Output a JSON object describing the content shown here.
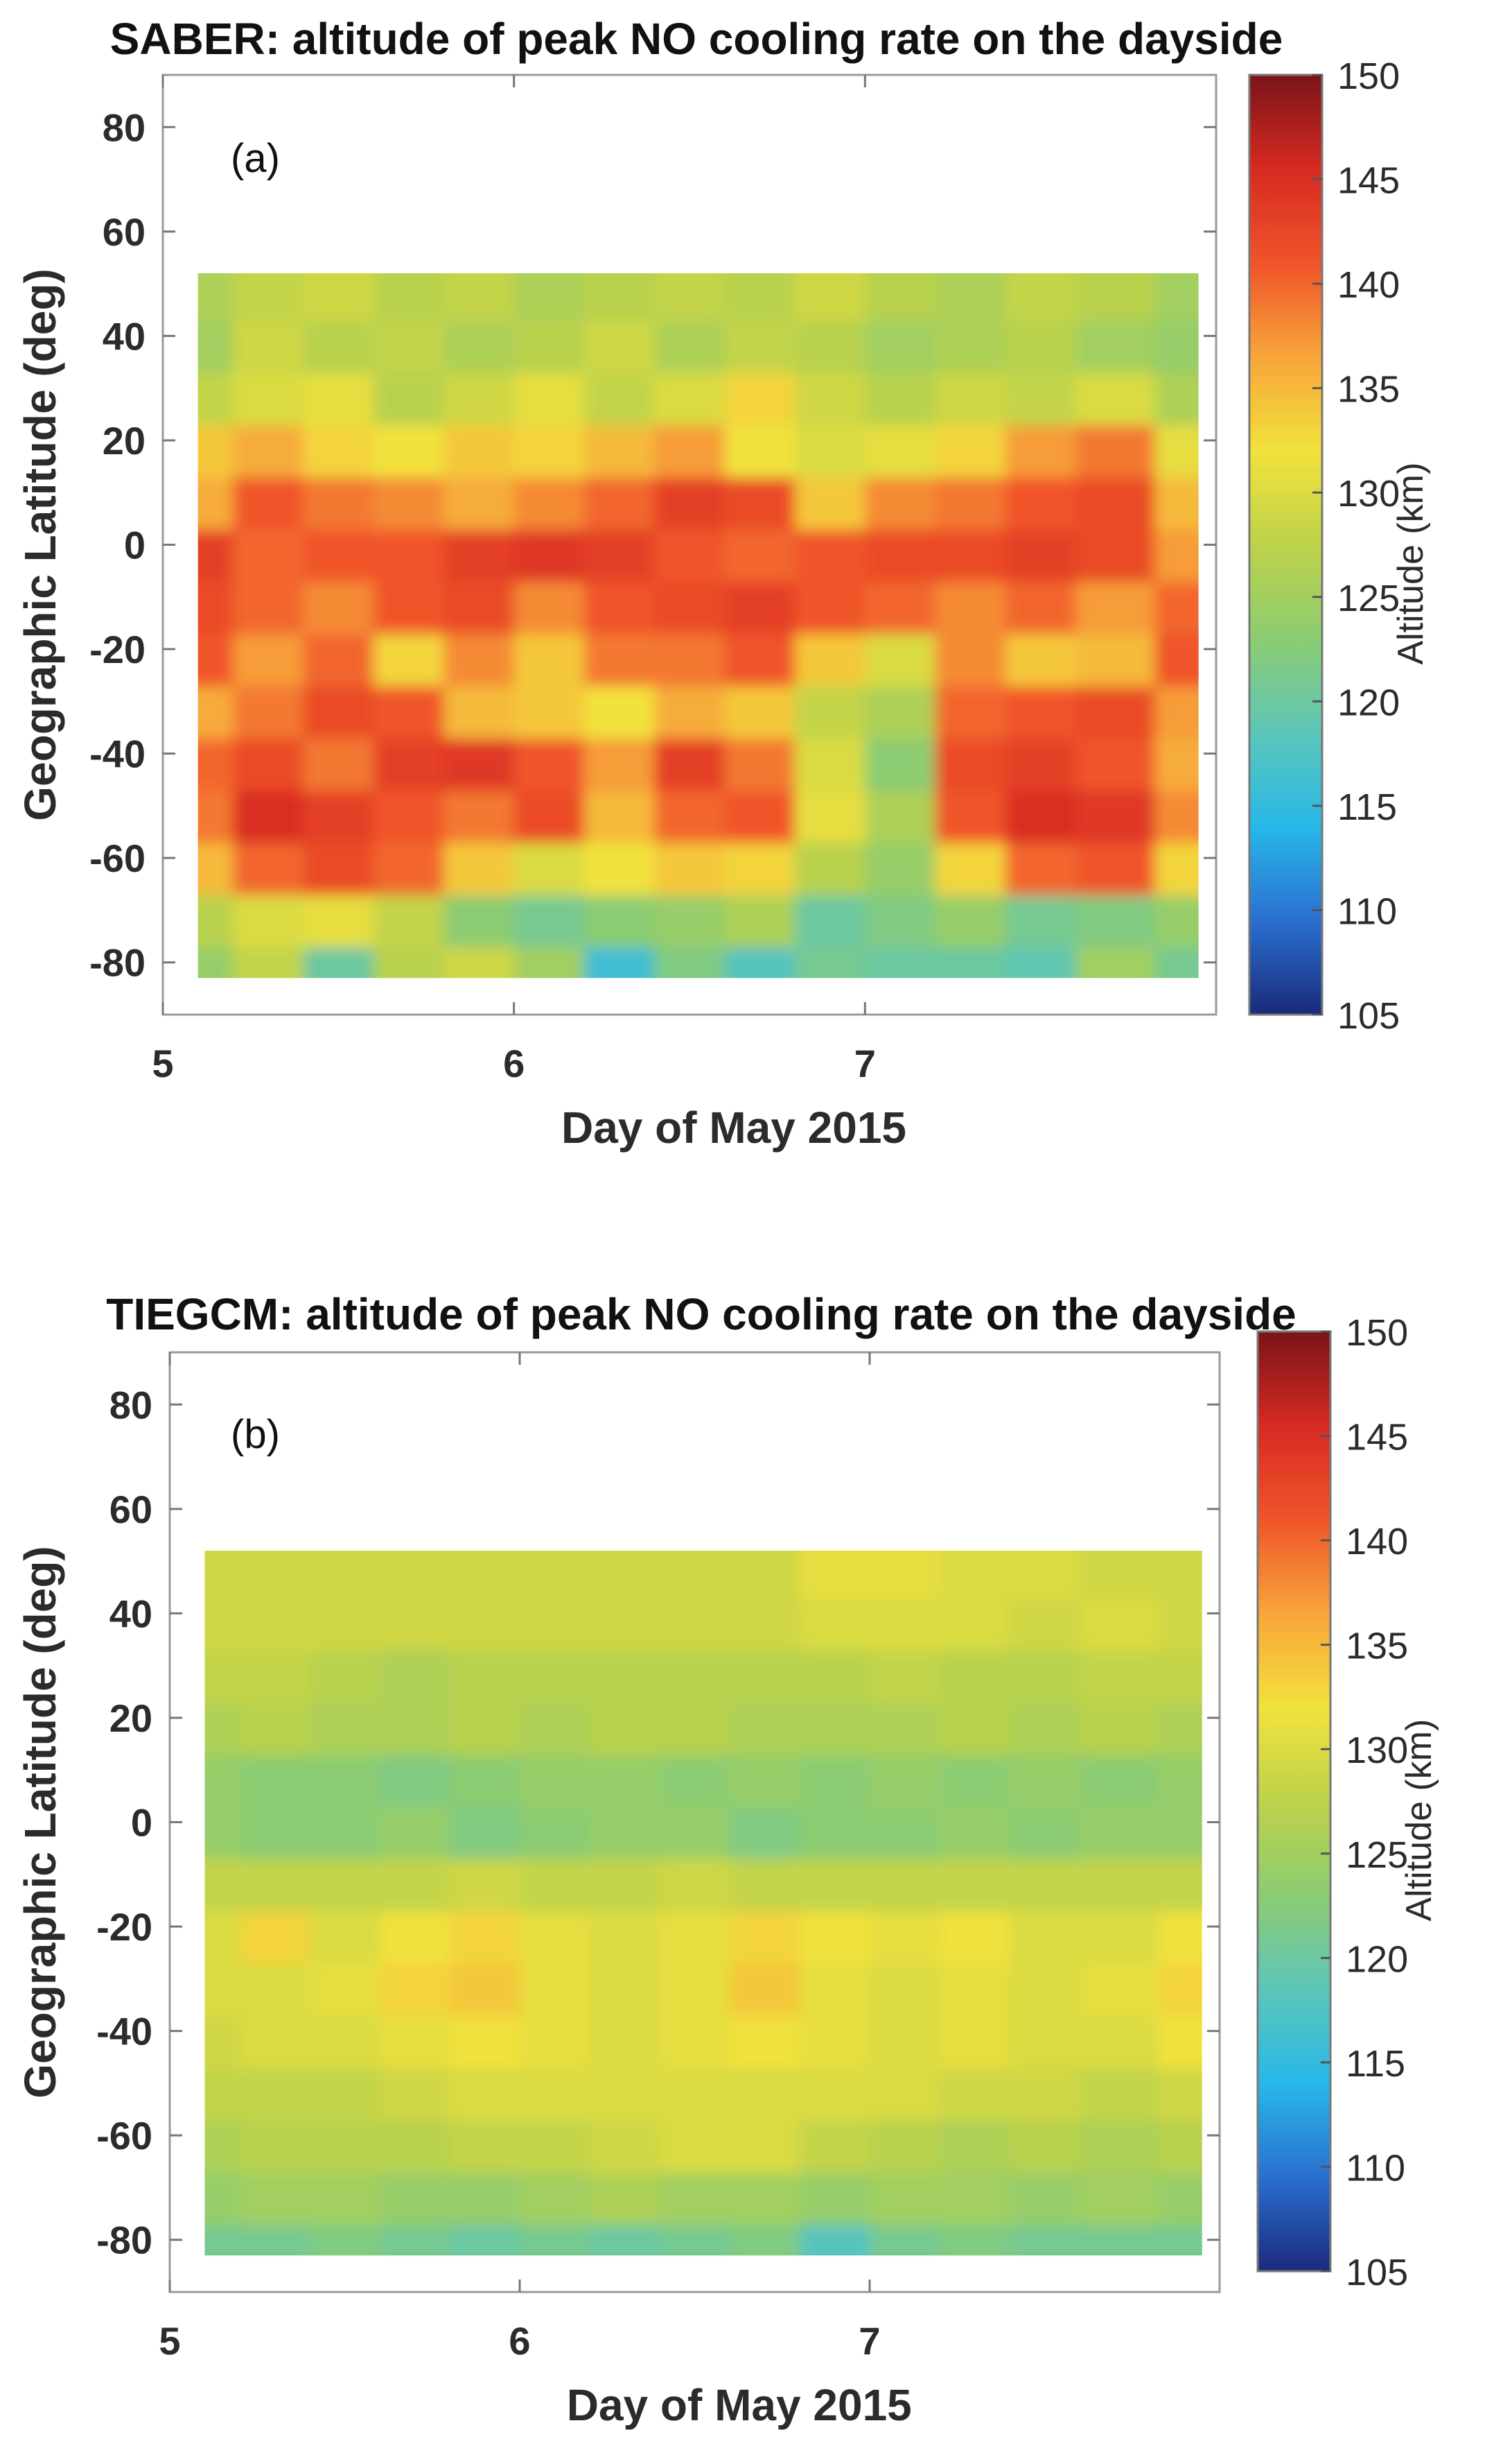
{
  "figure": {
    "panel_a": {
      "title": "SABER: altitude of peak NO cooling rate on the dayside",
      "tag": "(a)"
    },
    "panel_b": {
      "title": "TIEGCM: altitude of peak NO cooling rate on the dayside",
      "tag": "(b)"
    }
  },
  "colors": {
    "colormap": [
      "#1a2a7a",
      "#2a6fd0",
      "#28b8e8",
      "#5cc6b8",
      "#8ccc72",
      "#bdd24a",
      "#f2e23c",
      "#f7a53a",
      "#f0542a",
      "#d62a22",
      "#7a1418"
    ],
    "grid_line": "#9a9a9a",
    "axis": "#333333"
  },
  "chart_data": [
    {
      "type": "heatmap",
      "panel": "a",
      "title": "SABER: altitude of peak NO cooling rate on the dayside",
      "xlabel": "Day of May 2015",
      "ylabel": "Geographic Latitude (deg)",
      "xlim": [
        5,
        8
      ],
      "ylim": [
        -90,
        90
      ],
      "xticks": [
        5,
        6,
        7
      ],
      "yticks": [
        80,
        60,
        40,
        20,
        0,
        -20,
        -40,
        -60,
        -80
      ],
      "colorbar": {
        "label": "Altitude (km)",
        "range": [
          105,
          150
        ],
        "ticks": [
          150,
          145,
          140,
          135,
          130,
          125,
          120,
          115,
          110,
          105
        ]
      },
      "data_extent": {
        "day_start": 5.1,
        "day_end": 7.95,
        "lat_min": -83,
        "lat_max": 52
      },
      "grid": {
        "days": [
          5.1,
          5.3,
          5.5,
          5.7,
          5.9,
          6.1,
          6.3,
          6.5,
          6.7,
          6.9,
          7.1,
          7.3,
          7.5,
          7.7,
          7.95
        ],
        "lats": [
          -82,
          -72,
          -62,
          -52,
          -42,
          -32,
          -22,
          -12,
          -2,
          8,
          18,
          28,
          38,
          48
        ],
        "values": [
          [
            124,
            128,
            120,
            127,
            129,
            125,
            116,
            122,
            118,
            121,
            120,
            120,
            119,
            125,
            121
          ],
          [
            127,
            130,
            131,
            128,
            123,
            121,
            123,
            124,
            126,
            120,
            122,
            124,
            121,
            122,
            124
          ],
          [
            135,
            140,
            142,
            140,
            134,
            130,
            132,
            134,
            133,
            127,
            124,
            133,
            140,
            141,
            133
          ],
          [
            139,
            145,
            143,
            141,
            139,
            142,
            135,
            140,
            141,
            131,
            126,
            141,
            145,
            144,
            138
          ],
          [
            140,
            142,
            139,
            143,
            144,
            141,
            137,
            143,
            139,
            130,
            123,
            142,
            143,
            141,
            136
          ],
          [
            136,
            139,
            142,
            141,
            135,
            134,
            132,
            136,
            134,
            128,
            126,
            140,
            141,
            142,
            137
          ],
          [
            141,
            137,
            140,
            133,
            138,
            134,
            139,
            139,
            141,
            134,
            130,
            138,
            134,
            135,
            141
          ],
          [
            142,
            140,
            138,
            141,
            142,
            138,
            141,
            142,
            143,
            141,
            140,
            138,
            140,
            137,
            140
          ],
          [
            143,
            140,
            141,
            141,
            143,
            144,
            143,
            141,
            140,
            141,
            142,
            142,
            143,
            142,
            137
          ],
          [
            136,
            141,
            139,
            138,
            136,
            138,
            140,
            143,
            142,
            134,
            138,
            139,
            141,
            142,
            135
          ],
          [
            134,
            136,
            133,
            132,
            134,
            133,
            135,
            137,
            132,
            130,
            131,
            133,
            137,
            139,
            131
          ],
          [
            128,
            130,
            131,
            127,
            129,
            131,
            128,
            130,
            133,
            129,
            127,
            129,
            128,
            130,
            126
          ],
          [
            125,
            129,
            127,
            128,
            126,
            127,
            129,
            126,
            128,
            127,
            125,
            126,
            127,
            125,
            124
          ],
          [
            126,
            128,
            129,
            127,
            128,
            126,
            127,
            128,
            127,
            129,
            127,
            126,
            128,
            127,
            125
          ]
        ]
      }
    },
    {
      "type": "heatmap",
      "panel": "b",
      "title": "TIEGCM: altitude of peak NO cooling rate on the dayside",
      "xlabel": "Day of May 2015",
      "ylabel": "Geographic Latitude (deg)",
      "xlim": [
        5,
        8
      ],
      "ylim": [
        -90,
        90
      ],
      "xticks": [
        5,
        6,
        7
      ],
      "yticks": [
        80,
        60,
        40,
        20,
        0,
        -20,
        -40,
        -60,
        -80
      ],
      "colorbar": {
        "label": "Altitude (km)",
        "range": [
          105,
          150
        ],
        "ticks": [
          150,
          145,
          140,
          135,
          130,
          125,
          120,
          115,
          110,
          105
        ]
      },
      "data_extent": {
        "day_start": 5.1,
        "day_end": 7.95,
        "lat_min": -83,
        "lat_max": 52
      },
      "grid": {
        "days": [
          5.1,
          5.3,
          5.5,
          5.7,
          5.9,
          6.1,
          6.3,
          6.5,
          6.7,
          6.9,
          7.1,
          7.3,
          7.5,
          7.7,
          7.95
        ],
        "lats": [
          -82,
          -72,
          -62,
          -52,
          -42,
          -32,
          -22,
          -12,
          -2,
          8,
          18,
          28,
          38,
          48
        ],
        "values": [
          [
            121,
            121,
            122,
            121,
            120,
            121,
            120,
            121,
            122,
            118,
            121,
            122,
            121,
            121,
            121
          ],
          [
            124,
            125,
            125,
            124,
            124,
            125,
            126,
            125,
            125,
            124,
            125,
            125,
            124,
            125,
            124
          ],
          [
            126,
            127,
            127,
            127,
            128,
            128,
            129,
            130,
            130,
            128,
            127,
            126,
            127,
            126,
            127
          ],
          [
            128,
            128,
            128,
            129,
            130,
            130,
            130,
            130,
            130,
            130,
            130,
            129,
            129,
            128,
            129
          ],
          [
            129,
            130,
            130,
            131,
            132,
            131,
            130,
            131,
            132,
            131,
            130,
            131,
            130,
            130,
            132
          ],
          [
            130,
            130,
            131,
            133,
            134,
            131,
            130,
            131,
            134,
            131,
            130,
            131,
            130,
            131,
            133
          ],
          [
            130,
            133,
            130,
            132,
            133,
            131,
            130,
            131,
            133,
            132,
            131,
            132,
            130,
            130,
            132
          ],
          [
            128,
            128,
            128,
            128,
            129,
            128,
            128,
            129,
            128,
            128,
            128,
            128,
            128,
            128,
            128
          ],
          [
            124,
            123,
            123,
            124,
            122,
            123,
            124,
            124,
            122,
            123,
            123,
            124,
            123,
            124,
            124
          ],
          [
            124,
            123,
            123,
            122,
            123,
            124,
            124,
            123,
            124,
            123,
            124,
            123,
            124,
            123,
            124
          ],
          [
            126,
            127,
            126,
            126,
            127,
            126,
            127,
            127,
            126,
            126,
            126,
            127,
            126,
            127,
            126
          ],
          [
            128,
            128,
            127,
            126,
            127,
            127,
            127,
            127,
            127,
            127,
            128,
            127,
            127,
            128,
            128
          ],
          [
            129,
            129,
            129,
            129,
            129,
            129,
            129,
            129,
            129,
            130,
            130,
            130,
            129,
            130,
            129
          ],
          [
            129,
            129,
            129,
            129,
            129,
            129,
            129,
            129,
            129,
            131,
            131,
            130,
            130,
            129,
            129
          ]
        ]
      }
    }
  ]
}
